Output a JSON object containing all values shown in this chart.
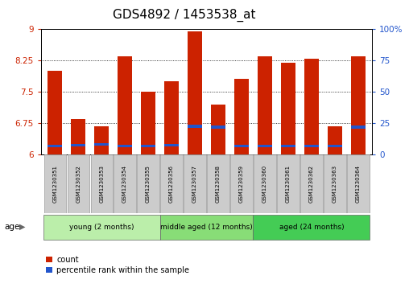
{
  "title": "GDS4892 / 1453538_at",
  "samples": [
    "GSM1230351",
    "GSM1230352",
    "GSM1230353",
    "GSM1230354",
    "GSM1230355",
    "GSM1230356",
    "GSM1230357",
    "GSM1230358",
    "GSM1230359",
    "GSM1230360",
    "GSM1230361",
    "GSM1230362",
    "GSM1230363",
    "GSM1230364"
  ],
  "count_values": [
    8.0,
    6.85,
    6.68,
    8.35,
    7.5,
    7.75,
    8.95,
    7.2,
    7.82,
    8.35,
    8.2,
    8.3,
    6.68,
    8.35
  ],
  "percentile_values": [
    6.18,
    6.2,
    6.22,
    6.18,
    6.18,
    6.2,
    6.65,
    6.63,
    6.18,
    6.18,
    6.18,
    6.18,
    6.18,
    6.63
  ],
  "ymin": 6,
  "ymax": 9,
  "yticks": [
    6,
    6.75,
    7.5,
    8.25,
    9
  ],
  "ytick_labels": [
    "6",
    "6.75",
    "7.5",
    "8.25",
    "9"
  ],
  "right_yticks": [
    0,
    25,
    50,
    75,
    100
  ],
  "right_ytick_labels": [
    "0",
    "25",
    "50",
    "75",
    "100%"
  ],
  "bar_color": "#cc2200",
  "percentile_color": "#2255cc",
  "bar_width": 0.6,
  "groups": [
    {
      "label": "young (2 months)",
      "start": 0,
      "end": 5,
      "color": "#bbeeaa"
    },
    {
      "label": "middle aged (12 months)",
      "start": 5,
      "end": 9,
      "color": "#88dd77"
    },
    {
      "label": "aged (24 months)",
      "start": 9,
      "end": 14,
      "color": "#44cc55"
    }
  ],
  "age_label": "age",
  "legend_count": "count",
  "legend_percentile": "percentile rank within the sample",
  "title_fontsize": 11,
  "tick_fontsize": 7.5,
  "label_fontsize": 8
}
